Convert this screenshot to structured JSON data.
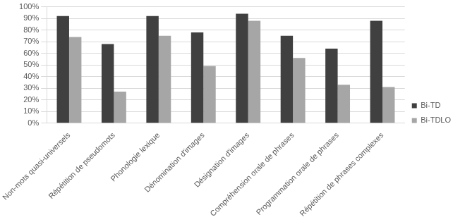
{
  "chart_data": {
    "type": "bar",
    "categories": [
      "Non-mots quasi-universels",
      "Répétition de pseudomots",
      "Phonologie lexique",
      "Dénomination d'images",
      "Désignation d'images",
      "Compréhension orale de phrases",
      "Programmation orale de phrases",
      "Répétition de phrases complexes"
    ],
    "series": [
      {
        "name": "Bi-TD",
        "color": "#404040",
        "values": [
          92,
          68,
          92,
          78,
          94,
          75,
          64,
          88
        ]
      },
      {
        "name": "Bi-TDLO",
        "color": "#a6a6a6",
        "values": [
          74,
          27,
          75,
          49,
          88,
          56,
          33,
          31
        ]
      }
    ],
    "ylim": [
      0,
      100
    ],
    "yticks": [
      {
        "value": 0,
        "label": "0%"
      },
      {
        "value": 10,
        "label": "10%"
      },
      {
        "value": 20,
        "label": "20%"
      },
      {
        "value": 30,
        "label": "30%"
      },
      {
        "value": 40,
        "label": "40%"
      },
      {
        "value": 50,
        "label": "50%"
      },
      {
        "value": 60,
        "label": "60%"
      },
      {
        "value": 70,
        "label": "70%"
      },
      {
        "value": 80,
        "label": "80%"
      },
      {
        "value": 90,
        "label": "90%"
      },
      {
        "value": 100,
        "label": "100%"
      }
    ],
    "grid": true,
    "legend": "right"
  }
}
